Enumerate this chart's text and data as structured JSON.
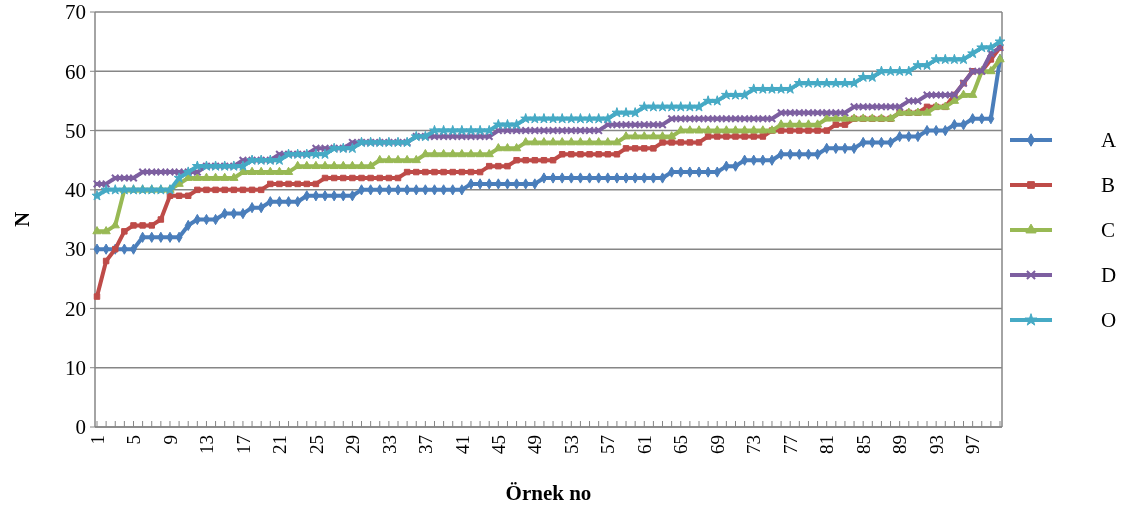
{
  "chart_data": {
    "type": "line",
    "xlabel": "Örnek no",
    "ylabel": "N",
    "ylim": [
      0,
      70
    ],
    "yticks": [
      0,
      10,
      20,
      30,
      40,
      50,
      60,
      70
    ],
    "grid": "y",
    "legend": "right",
    "line_style": "solid",
    "categories": [
      "1",
      null,
      null,
      null,
      "5",
      null,
      null,
      null,
      "9",
      null,
      null,
      null,
      "13",
      null,
      null,
      null,
      "17",
      null,
      null,
      null,
      "21",
      null,
      null,
      null,
      "25",
      null,
      null,
      null,
      "29",
      null,
      null,
      null,
      "33",
      null,
      null,
      null,
      "37",
      null,
      null,
      null,
      "41",
      null,
      null,
      null,
      "45",
      null,
      null,
      null,
      "49",
      null,
      null,
      null,
      "53",
      null,
      null,
      null,
      "57",
      null,
      null,
      null,
      "61",
      null,
      null,
      null,
      "65",
      null,
      null,
      null,
      "69",
      null,
      null,
      null,
      "73",
      null,
      null,
      null,
      "77",
      null,
      null,
      null,
      "81",
      null,
      null,
      null,
      "85",
      null,
      null,
      null,
      "89",
      null,
      null,
      null,
      "93",
      null,
      null,
      null,
      "97",
      null,
      null,
      null
    ],
    "series": [
      {
        "name": "A",
        "color": "#4a7ebb",
        "marker": "diamond",
        "values": [
          30,
          30,
          30,
          30,
          30,
          32,
          32,
          32,
          32,
          32,
          34,
          35,
          35,
          35,
          36,
          36,
          36,
          37,
          37,
          38,
          38,
          38,
          38,
          39,
          39,
          39,
          39,
          39,
          39,
          40,
          40,
          40,
          40,
          40,
          40,
          40,
          40,
          40,
          40,
          40,
          40,
          41,
          41,
          41,
          41,
          41,
          41,
          41,
          41,
          42,
          42,
          42,
          42,
          42,
          42,
          42,
          42,
          42,
          42,
          42,
          42,
          42,
          42,
          43,
          43,
          43,
          43,
          43,
          43,
          44,
          44,
          45,
          45,
          45,
          45,
          46,
          46,
          46,
          46,
          46,
          47,
          47,
          47,
          47,
          48,
          48,
          48,
          48,
          49,
          49,
          49,
          50,
          50,
          50,
          51,
          51,
          52,
          52,
          52,
          62
        ]
      },
      {
        "name": "B",
        "color": "#be4b48",
        "marker": "square",
        "values": [
          22,
          28,
          30,
          33,
          34,
          34,
          34,
          35,
          39,
          39,
          39,
          40,
          40,
          40,
          40,
          40,
          40,
          40,
          40,
          41,
          41,
          41,
          41,
          41,
          41,
          42,
          42,
          42,
          42,
          42,
          42,
          42,
          42,
          42,
          43,
          43,
          43,
          43,
          43,
          43,
          43,
          43,
          43,
          44,
          44,
          44,
          45,
          45,
          45,
          45,
          45,
          46,
          46,
          46,
          46,
          46,
          46,
          46,
          47,
          47,
          47,
          47,
          48,
          48,
          48,
          48,
          48,
          49,
          49,
          49,
          49,
          49,
          49,
          49,
          50,
          50,
          50,
          50,
          50,
          50,
          50,
          51,
          51,
          52,
          52,
          52,
          52,
          52,
          53,
          53,
          53,
          54,
          54,
          54,
          56,
          58,
          60,
          60,
          62,
          64
        ]
      },
      {
        "name": "C",
        "color": "#98b954",
        "marker": "triangle",
        "values": [
          33,
          33,
          34,
          40,
          40,
          40,
          40,
          40,
          40,
          41,
          42,
          42,
          42,
          42,
          42,
          42,
          43,
          43,
          43,
          43,
          43,
          43,
          44,
          44,
          44,
          44,
          44,
          44,
          44,
          44,
          44,
          45,
          45,
          45,
          45,
          45,
          46,
          46,
          46,
          46,
          46,
          46,
          46,
          46,
          47,
          47,
          47,
          48,
          48,
          48,
          48,
          48,
          48,
          48,
          48,
          48,
          48,
          48,
          49,
          49,
          49,
          49,
          49,
          49,
          50,
          50,
          50,
          50,
          50,
          50,
          50,
          50,
          50,
          50,
          50,
          51,
          51,
          51,
          51,
          51,
          52,
          52,
          52,
          52,
          52,
          52,
          52,
          52,
          53,
          53,
          53,
          53,
          54,
          54,
          55,
          56,
          56,
          60,
          60,
          62
        ]
      },
      {
        "name": "D",
        "color": "#7d5fa0",
        "marker": "cross",
        "values": [
          41,
          41,
          42,
          42,
          42,
          43,
          43,
          43,
          43,
          43,
          43,
          43,
          44,
          44,
          44,
          44,
          45,
          45,
          45,
          45,
          46,
          46,
          46,
          46,
          47,
          47,
          47,
          47,
          48,
          48,
          48,
          48,
          48,
          48,
          48,
          49,
          49,
          49,
          49,
          49,
          49,
          49,
          49,
          49,
          50,
          50,
          50,
          50,
          50,
          50,
          50,
          50,
          50,
          50,
          50,
          50,
          51,
          51,
          51,
          51,
          51,
          51,
          51,
          52,
          52,
          52,
          52,
          52,
          52,
          52,
          52,
          52,
          52,
          52,
          52,
          53,
          53,
          53,
          53,
          53,
          53,
          53,
          53,
          54,
          54,
          54,
          54,
          54,
          54,
          55,
          55,
          56,
          56,
          56,
          56,
          58,
          60,
          60,
          63,
          64
        ]
      },
      {
        "name": "O",
        "color": "#46aac5",
        "marker": "star",
        "values": [
          39,
          40,
          40,
          40,
          40,
          40,
          40,
          40,
          40,
          42,
          43,
          44,
          44,
          44,
          44,
          44,
          44,
          45,
          45,
          45,
          45,
          46,
          46,
          46,
          46,
          46,
          47,
          47,
          47,
          48,
          48,
          48,
          48,
          48,
          48,
          49,
          49,
          50,
          50,
          50,
          50,
          50,
          50,
          50,
          51,
          51,
          51,
          52,
          52,
          52,
          52,
          52,
          52,
          52,
          52,
          52,
          52,
          53,
          53,
          53,
          54,
          54,
          54,
          54,
          54,
          54,
          54,
          55,
          55,
          56,
          56,
          56,
          57,
          57,
          57,
          57,
          57,
          58,
          58,
          58,
          58,
          58,
          58,
          58,
          59,
          59,
          60,
          60,
          60,
          60,
          61,
          61,
          62,
          62,
          62,
          62,
          63,
          64,
          64,
          65
        ]
      }
    ]
  }
}
